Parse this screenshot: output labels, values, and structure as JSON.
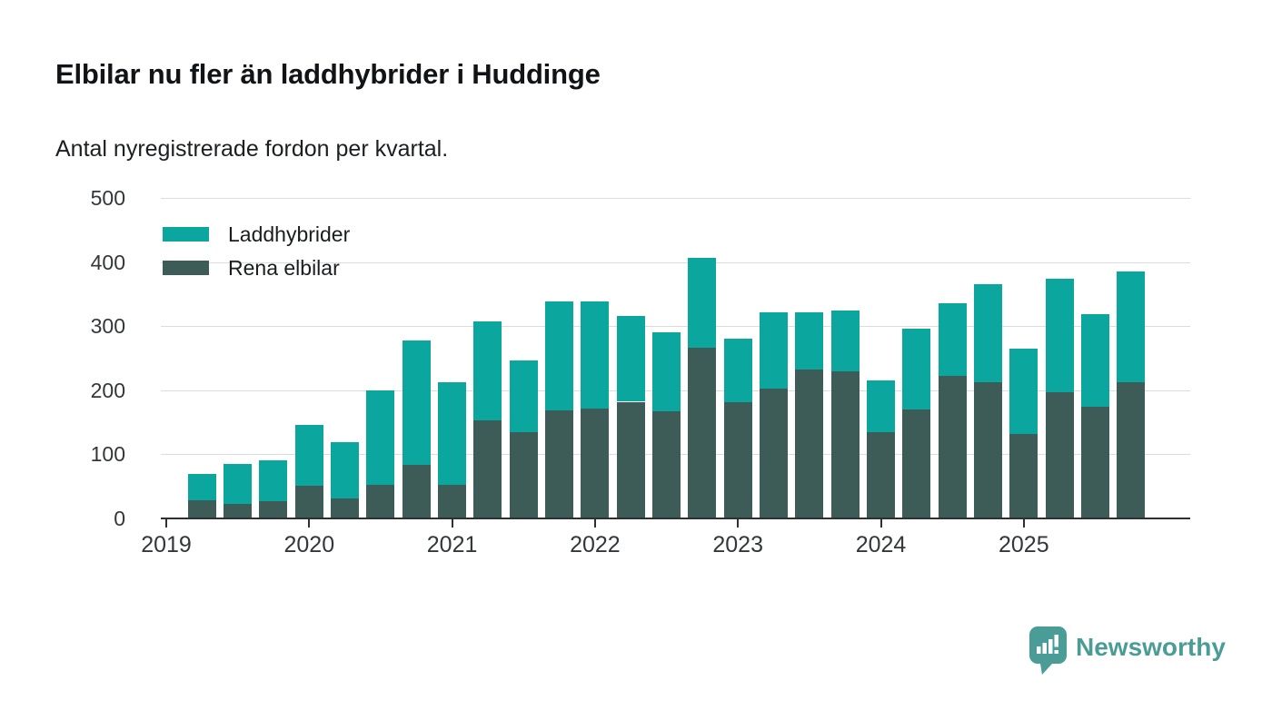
{
  "header": {
    "title": "Elbilar nu fler än laddhybrider i Huddinge",
    "subtitle": "Antal nyregistrerade fordon per kvartal."
  },
  "legend": {
    "items": [
      {
        "label": "Laddhybrider",
        "color": "#0ba79e"
      },
      {
        "label": "Rena elbilar",
        "color": "#3d5b57"
      }
    ]
  },
  "chart_data": {
    "type": "bar",
    "stacked": true,
    "title": "Elbilar nu fler än laddhybrider i Huddinge",
    "subtitle": "Antal nyregistrerade fordon per kvartal.",
    "xlabel": "",
    "ylabel": "",
    "ylim": [
      0,
      500
    ],
    "yticks": [
      0,
      100,
      200,
      300,
      400,
      500
    ],
    "grid": true,
    "legend_position": "top-left",
    "x_year_labels": [
      "2019",
      "2020",
      "2021",
      "2022",
      "2023",
      "2024",
      "2025"
    ],
    "first_quarter_offset": 1,
    "categories": [
      "2019-K2",
      "2019-K3",
      "2019-K4",
      "2020-K1",
      "2020-K2",
      "2020-K3",
      "2020-K4",
      "2021-K1",
      "2021-K2",
      "2021-K3",
      "2021-K4",
      "2022-K1",
      "2022-K2",
      "2022-K3",
      "2022-K4",
      "2023-K1",
      "2023-K2",
      "2023-K3",
      "2023-K4",
      "2024-K1",
      "2024-K2",
      "2024-K3",
      "2024-K4",
      "2025-K1",
      "2025-K2",
      "2025-K3",
      "2025-K4"
    ],
    "series": [
      {
        "name": "Laddhybrider",
        "color": "#0ba79e",
        "values": [
          41,
          63,
          64,
          95,
          88,
          148,
          194,
          161,
          155,
          112,
          171,
          167,
          134,
          124,
          140,
          99,
          120,
          89,
          96,
          82,
          126,
          113,
          154,
          133,
          177,
          145,
          172
        ]
      },
      {
        "name": "Rena elbilar",
        "color": "#3d5b57",
        "values": [
          29,
          22,
          27,
          51,
          31,
          52,
          84,
          52,
          153,
          134,
          168,
          172,
          182,
          167,
          266,
          181,
          202,
          232,
          229,
          134,
          170,
          223,
          212,
          132,
          197,
          174,
          213
        ]
      }
    ]
  },
  "branding": {
    "name": "Newsworthy",
    "color": "#4a9c97"
  }
}
